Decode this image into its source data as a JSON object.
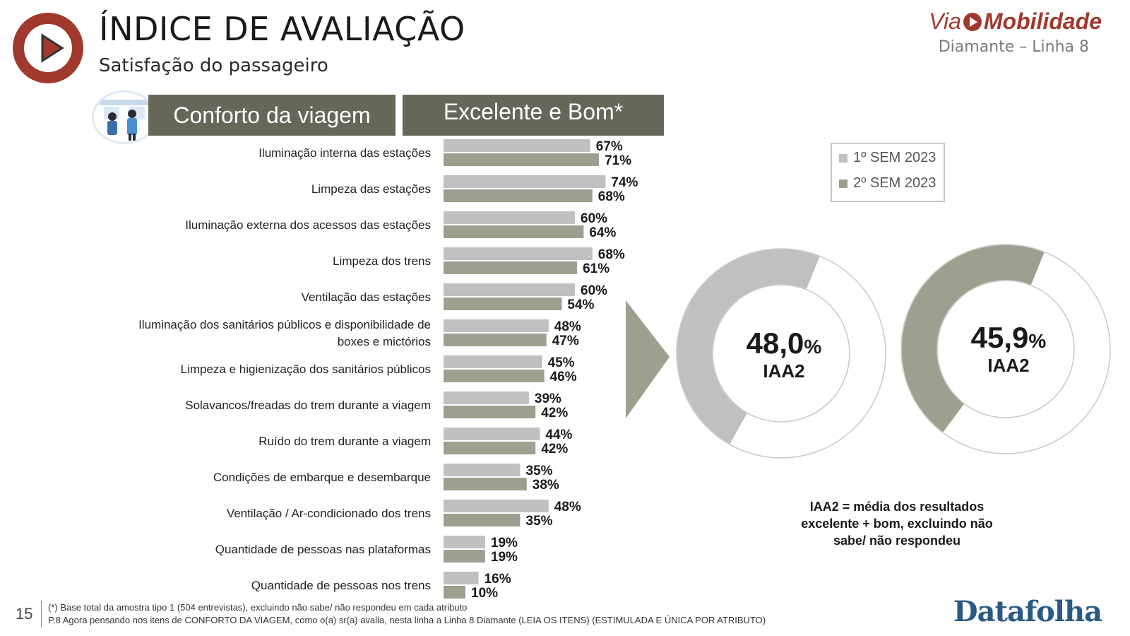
{
  "header": {
    "title": "ÍNDICE DE AVALIAÇÃO",
    "subtitle": "Satisfação do passageiro",
    "brand_via": "Via",
    "brand_mobilidade": "Mobilidade",
    "line_name": "Diamante – Linha 8"
  },
  "banners": {
    "section": "Conforto da viagem",
    "metric": "Excelente e Bom*"
  },
  "colors": {
    "series1": "#c0c0c0",
    "series2": "#9f9f8f",
    "banner": "#676759",
    "brand": "#a1392e",
    "datafolha": "#2a5a84"
  },
  "chart_data": [
    {
      "type": "bar",
      "orientation": "horizontal",
      "categories": [
        "Iluminação interna das estações",
        "Limpeza das estações",
        "Iluminação externa dos acessos das estações",
        "Limpeza dos trens",
        "Ventilação das estações",
        "Iluminação dos sanitários públicos e disponibilidade de boxes e mictórios",
        "Limpeza e higienização dos sanitários públicos",
        "Solavancos/freadas do trem durante a viagem",
        "Ruído do trem durante a viagem",
        "Condições de embarque e desembarque",
        "Ventilação / Ar-condicionado dos trens",
        "Quantidade de pessoas nas plataformas",
        "Quantidade de pessoas nos trens"
      ],
      "category_lines": [
        [
          "Iluminação interna das estações"
        ],
        [
          "Limpeza das estações"
        ],
        [
          "Iluminação externa dos acessos das estações"
        ],
        [
          "Limpeza dos trens"
        ],
        [
          "Ventilação das estações"
        ],
        [
          "Iluminação dos sanitários públicos e disponibilidade de",
          "boxes e mictórios"
        ],
        [
          "Limpeza e higienização dos sanitários públicos"
        ],
        [
          "Solavancos/freadas do trem durante a viagem"
        ],
        [
          "Ruído do trem durante a viagem"
        ],
        [
          "Condições de embarque e desembarque"
        ],
        [
          "Ventilação / Ar-condicionado dos trens"
        ],
        [
          "Quantidade de pessoas nas plataformas"
        ],
        [
          "Quantidade de pessoas nos trens"
        ]
      ],
      "series": [
        {
          "name": "1º SEM 2023",
          "values": [
            67,
            74,
            60,
            68,
            60,
            48,
            45,
            39,
            44,
            35,
            48,
            19,
            16
          ]
        },
        {
          "name": "2º SEM 2023",
          "values": [
            71,
            68,
            64,
            61,
            54,
            47,
            46,
            42,
            42,
            38,
            35,
            19,
            10
          ]
        }
      ],
      "value_suffix": "%",
      "legend": "right",
      "grid": false
    },
    {
      "type": "pie",
      "variant": "donut",
      "value": 48.0,
      "display": "48,0",
      "unit": "%",
      "label": "IAA2",
      "series": "1º SEM 2023"
    },
    {
      "type": "pie",
      "variant": "donut",
      "value": 45.9,
      "display": "45,9",
      "unit": "%",
      "label": "IAA2",
      "series": "2º SEM 2023"
    }
  ],
  "note": {
    "line1": "IAA2 = média dos resultados",
    "line2": "excelente + bom, excluindo não",
    "line3": "sabe/ não respondeu"
  },
  "footer": {
    "page_number": "15",
    "footnote1": "(*) Base total da amostra tipo 1 (504 entrevistas), excluindo não sabe/ não respondeu em cada atributo",
    "footnote2": "P.8 Agora pensando nos itens de CONFORTO DA VIAGEM, como o(a) sr(a) avalia, nesta linha a Linha 8 Diamante (LEIA OS ITENS) (ESTIMULADA E ÚNICA POR ATRIBUTO)",
    "logo": "Datafolha"
  }
}
